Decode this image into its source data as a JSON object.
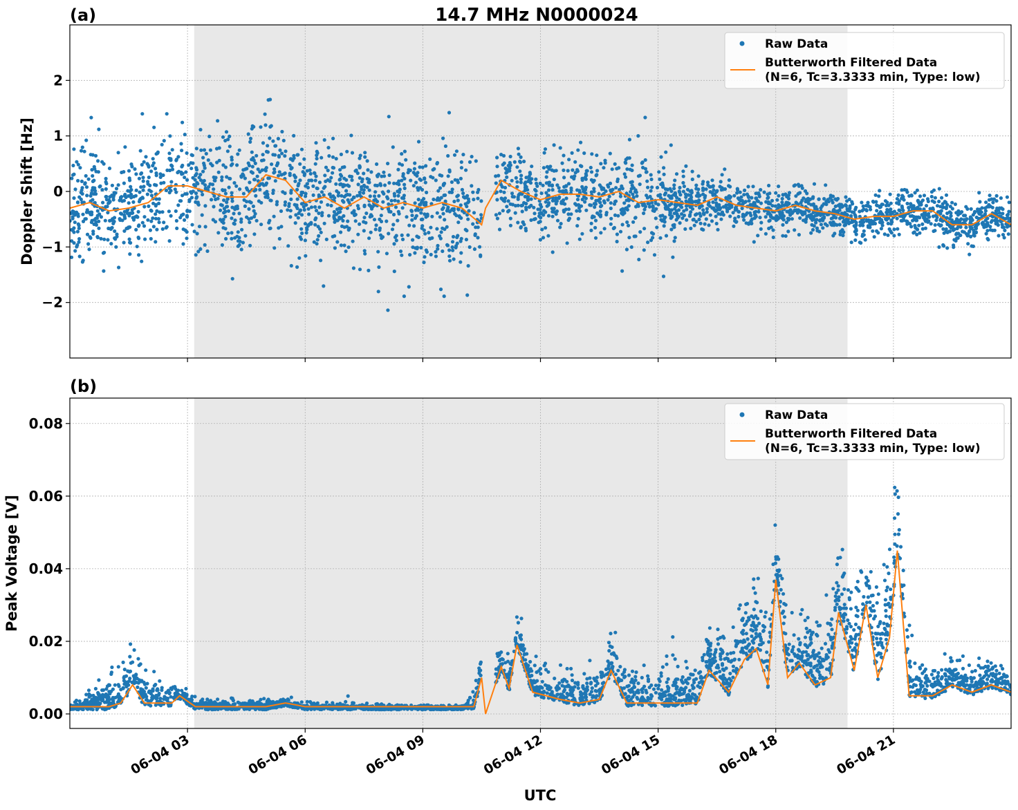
{
  "figure": {
    "title": "14.7 MHz N0000024",
    "xlabel": "UTC",
    "x_ticks": [
      "06-04 03",
      "06-04 06",
      "06-04 09",
      "06-04 12",
      "06-04 15",
      "06-04 18",
      "06-04 21"
    ],
    "x_tick_hours": [
      3,
      6,
      9,
      12,
      15,
      18,
      21
    ],
    "xlim_hours": [
      0,
      24
    ],
    "night_shading_hours": [
      3.17,
      19.83
    ],
    "grid": true,
    "legend": {
      "position": "top-right",
      "raw_label": "Raw Data",
      "filtered_label_line1": "Butterworth Filtered Data",
      "filtered_label_line2": "(N=6, Tc=3.3333 min, Type: low)"
    },
    "colors": {
      "raw": "#1f77b4",
      "filtered": "#ff7f0e",
      "shading": "#e8e8e8",
      "grid": "#b0b0b0"
    }
  },
  "chart_data": [
    {
      "type": "scatter",
      "panel_label": "(a)",
      "ylabel": "Doppler Shift [Hz]",
      "ylim": [
        -3,
        3
      ],
      "y_ticks": [
        -2,
        -1,
        0,
        1,
        2
      ],
      "y_tick_labels": [
        "−2",
        "−1",
        "0",
        "1",
        "2"
      ],
      "series": [
        {
          "name": "Butterworth Filtered Data",
          "x": [
            0,
            0.5,
            1,
            1.5,
            2,
            2.5,
            3,
            3.5,
            4,
            4.5,
            5,
            5.5,
            6,
            6.5,
            7,
            7.5,
            8,
            8.5,
            9,
            9.5,
            10,
            10.5,
            10.6,
            11,
            11.5,
            12,
            12.5,
            13,
            13.5,
            14,
            14.5,
            15,
            15.5,
            16,
            16.5,
            17,
            17.5,
            18,
            18.5,
            19,
            19.5,
            20,
            20.5,
            21,
            21.5,
            22,
            22.5,
            23,
            23.5,
            24
          ],
          "y": [
            -0.3,
            -0.2,
            -0.35,
            -0.3,
            -0.2,
            0.1,
            0.1,
            0.0,
            -0.1,
            -0.1,
            0.3,
            0.2,
            -0.2,
            -0.1,
            -0.3,
            -0.1,
            -0.3,
            -0.2,
            -0.3,
            -0.2,
            -0.3,
            -0.6,
            -0.3,
            0.2,
            0.0,
            -0.15,
            -0.05,
            -0.05,
            -0.1,
            0.0,
            -0.2,
            -0.15,
            -0.2,
            -0.25,
            -0.1,
            -0.25,
            -0.3,
            -0.35,
            -0.25,
            -0.35,
            -0.4,
            -0.5,
            -0.45,
            -0.45,
            -0.35,
            -0.35,
            -0.6,
            -0.6,
            -0.4,
            -0.6
          ]
        },
        {
          "name": "Raw Data",
          "note_envelope": "points scattered around filtered curve",
          "spread_x": [
            0,
            1.5,
            3,
            6,
            9,
            10.5,
            11,
            13,
            15,
            16,
            19,
            21,
            24
          ],
          "spread_y": [
            0.9,
            0.8,
            1.1,
            0.9,
            0.9,
            0.9,
            0.6,
            0.7,
            0.8,
            0.4,
            0.35,
            0.35,
            0.35
          ]
        }
      ]
    },
    {
      "type": "scatter",
      "panel_label": "(b)",
      "ylabel": "Peak Voltage [V]",
      "ylim": [
        -0.004,
        0.087
      ],
      "y_ticks": [
        0.0,
        0.02,
        0.04,
        0.06,
        0.08
      ],
      "y_tick_labels": [
        "0.00",
        "0.02",
        "0.04",
        "0.06",
        "0.08"
      ],
      "series": [
        {
          "name": "Butterworth Filtered Data",
          "x": [
            0,
            0.5,
            1,
            1.3,
            1.6,
            1.9,
            2.2,
            2.6,
            2.8,
            3.2,
            3.6,
            4.0,
            4.5,
            5.0,
            5.5,
            6.0,
            7,
            8,
            9,
            10,
            10.3,
            10.5,
            10.6,
            11.0,
            11.2,
            11.4,
            11.8,
            12.5,
            13,
            13.5,
            13.8,
            14.2,
            15.0,
            15.5,
            16.0,
            16.3,
            16.8,
            17.2,
            17.5,
            17.8,
            18.0,
            18.3,
            18.6,
            19.0,
            19.4,
            19.6,
            20.0,
            20.3,
            20.6,
            20.9,
            21.1,
            21.4,
            22,
            22.5,
            23,
            23.5,
            24
          ],
          "y": [
            0.002,
            0.002,
            0.002,
            0.003,
            0.008,
            0.003,
            0.003,
            0.003,
            0.005,
            0.002,
            0.002,
            0.002,
            0.002,
            0.002,
            0.003,
            0.002,
            0.002,
            0.002,
            0.002,
            0.002,
            0.002,
            0.01,
            0.0,
            0.013,
            0.007,
            0.019,
            0.006,
            0.004,
            0.003,
            0.004,
            0.012,
            0.003,
            0.003,
            0.003,
            0.003,
            0.012,
            0.006,
            0.015,
            0.018,
            0.008,
            0.037,
            0.01,
            0.014,
            0.008,
            0.01,
            0.028,
            0.012,
            0.03,
            0.01,
            0.021,
            0.045,
            0.005,
            0.005,
            0.008,
            0.006,
            0.008,
            0.006
          ]
        },
        {
          "name": "Raw Data",
          "note_envelope": "points above filtered curve",
          "spread_x": [
            0,
            1.6,
            3,
            6,
            10,
            10.5,
            11.2,
            13.8,
            16.5,
            17.8,
            18.5,
            19.6,
            20.3,
            21.0,
            22,
            24
          ],
          "spread_y": [
            0.001,
            0.012,
            0.003,
            0.002,
            0.001,
            0.008,
            0.008,
            0.01,
            0.012,
            0.02,
            0.012,
            0.022,
            0.018,
            0.025,
            0.008,
            0.008
          ]
        }
      ]
    }
  ]
}
